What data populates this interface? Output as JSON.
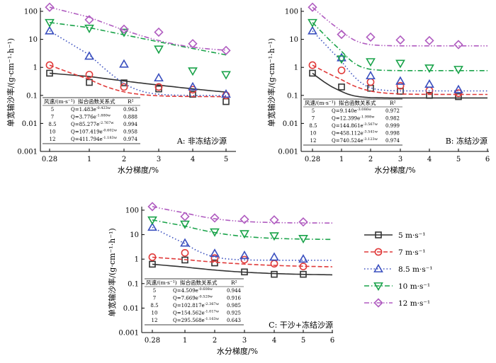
{
  "chart_data": [
    {
      "type": "scatter",
      "panel_label": "A: 非冻结沙源",
      "xlabel": "水分梯度/%",
      "ylabel": "单宽输沙率/(g·cm⁻¹·h⁻¹)",
      "yscale": "log",
      "ylim": [
        0.001,
        200
      ],
      "x_ticks": [
        "0.28",
        "1",
        "2",
        "3",
        "4",
        "5"
      ],
      "x": [
        0.28,
        1,
        2,
        3,
        4,
        5
      ],
      "series": [
        {
          "name": "5 m·s⁻¹",
          "color": "#333333",
          "marker": "square",
          "values": [
            0.62,
            0.29,
            0.28,
            0.17,
            0.11,
            0.06
          ],
          "fit": {
            "a": 1.483,
            "b": 0.423,
            "exp": "-0.423w",
            "r2": "0.963"
          }
        },
        {
          "name": "7 m·s⁻¹",
          "color": "#e03a3a",
          "marker": "circle",
          "values": [
            1.2,
            0.55,
            0.2,
            0.2,
            0.16,
            0.1
          ],
          "fit": {
            "a": 3.776,
            "b": 1.88,
            "exp": "-1.880w",
            "r2": "0.888"
          }
        },
        {
          "name": "8.5 m·s⁻¹",
          "color": "#3a4fbf",
          "marker": "triangle-up",
          "values": [
            20,
            2.5,
            1.3,
            0.42,
            0.2,
            0.11
          ],
          "fit": {
            "a": 85.277,
            "b": 2.767,
            "exp": "-2.767w",
            "r2": "0.994"
          }
        },
        {
          "name": "10 m·s⁻¹",
          "color": "#1aa34a",
          "marker": "triangle-down",
          "values": [
            40,
            25,
            18,
            4.5,
            0.75,
            0.55
          ],
          "fit": {
            "a": 107.419,
            "b": 0.602,
            "exp": "-0.602w",
            "r2": "0.958"
          }
        },
        {
          "name": "12 m·s⁻¹",
          "color": "#b05cc0",
          "marker": "diamond",
          "values": [
            140,
            50,
            23,
            18,
            7,
            4
          ],
          "fit": {
            "a": 411.794,
            "b": 1.183,
            "exp": "-1.183w",
            "r2": "0.974"
          }
        }
      ],
      "fit_table": {
        "headers": [
          "风速/(m·s⁻¹)",
          "拟合函数关系式",
          "R²"
        ],
        "rows": [
          {
            "speed": "5",
            "formula": "Q=1.483e",
            "exp": "-0.423w",
            "r2": "0.963"
          },
          {
            "speed": "7",
            "formula": "Q=3.776e",
            "exp": "-1.880w",
            "r2": "0.888"
          },
          {
            "speed": "8.5",
            "formula": "Q=85.277e",
            "exp": "-2.767w",
            "r2": "0.994"
          },
          {
            "speed": "10",
            "formula": "Q=107.419e",
            "exp": "-0.602w",
            "r2": "0.958"
          },
          {
            "speed": "12",
            "formula": "Q=411.794e",
            "exp": "-1.183w",
            "r2": "0.974"
          }
        ]
      }
    },
    {
      "type": "scatter",
      "panel_label": "B: 冻结沙源",
      "xlabel": "水分梯度/%",
      "ylabel": "单宽输沙率/(g·cm⁻¹·h⁻¹)",
      "yscale": "log",
      "ylim": [
        0.001,
        200
      ],
      "x_ticks": [
        "0.28",
        "1",
        "2",
        "3",
        "4",
        "5",
        "6"
      ],
      "x": [
        0.28,
        1,
        2,
        3,
        4,
        5
      ],
      "series": [
        {
          "name": "5 m·s⁻¹",
          "color": "#333333",
          "marker": "square",
          "values": [
            0.62,
            0.2,
            0.18,
            0.14,
            0.1,
            0.09
          ],
          "fit": {
            "a": 9.14,
            "b": 3.086,
            "exp": "-3.086w",
            "r2": "0.972"
          }
        },
        {
          "name": "7 m·s⁻¹",
          "color": "#e03a3a",
          "marker": "circle",
          "values": [
            1.2,
            0.78,
            0.3,
            0.22,
            0.15,
            0.12
          ],
          "fit": {
            "a": 12.399,
            "b": 1.998,
            "exp": "-1.998w",
            "r2": "0.982"
          }
        },
        {
          "name": "8.5 m·s⁻¹",
          "color": "#3a4fbf",
          "marker": "triangle-up",
          "values": [
            20,
            2.2,
            0.5,
            0.32,
            0.25,
            0.16
          ],
          "fit": {
            "a": 144.861,
            "b": 3.567,
            "exp": "-3.567w",
            "r2": "0.999"
          }
        },
        {
          "name": "10 m·s⁻¹",
          "color": "#1aa34a",
          "marker": "triangle-down",
          "values": [
            40,
            2.0,
            1.6,
            1.4,
            0.95,
            0.85
          ],
          "fit": {
            "a": 458.112,
            "b": 3.541,
            "exp": "-3.541w",
            "r2": "0.998"
          }
        },
        {
          "name": "12 m·s⁻¹",
          "color": "#b05cc0",
          "marker": "diamond",
          "values": [
            140,
            15,
            12,
            9.5,
            9,
            6.5
          ],
          "fit": {
            "a": 740.524,
            "b": 3.123,
            "exp": "-3.123w",
            "r2": "0.974"
          }
        }
      ],
      "fit_table": {
        "headers": [
          "风速/(m·s⁻¹)",
          "拟合函数关系式",
          "R²"
        ],
        "rows": [
          {
            "speed": "5",
            "formula": "Q=9.140e",
            "exp": "-3.086w",
            "r2": "0.972"
          },
          {
            "speed": "7",
            "formula": "Q=12.399e",
            "exp": "-1.998w",
            "r2": "0.982"
          },
          {
            "speed": "8.5",
            "formula": "Q=144.861e",
            "exp": "-3.567w",
            "r2": "0.999"
          },
          {
            "speed": "10",
            "formula": "Q=458.112e",
            "exp": "-3.541w",
            "r2": "0.998"
          },
          {
            "speed": "12",
            "formula": "Q=740.524e",
            "exp": "-3.123w",
            "r2": "0.974"
          }
        ]
      }
    },
    {
      "type": "scatter",
      "panel_label": "C: 干沙+冻结沙源",
      "xlabel": "水分梯度/%",
      "ylabel": "单宽输沙率/(g·cm⁻¹·h⁻¹)",
      "yscale": "log",
      "ylim": [
        0.001,
        200
      ],
      "x_ticks": [
        "0.28",
        "1",
        "2",
        "3",
        "4",
        "5",
        "6"
      ],
      "x": [
        0.28,
        1,
        2,
        3,
        4,
        5
      ],
      "series": [
        {
          "name": "5 m·s⁻¹",
          "color": "#333333",
          "marker": "square",
          "values": [
            0.62,
            0.92,
            0.7,
            0.3,
            0.24,
            0.24
          ],
          "fit": {
            "a": 4.509,
            "b": 0.608,
            "exp": "-0.608w",
            "r2": "0.944"
          }
        },
        {
          "name": "7 m·s⁻¹",
          "color": "#e03a3a",
          "marker": "circle",
          "values": [
            1.2,
            1.8,
            1.1,
            0.95,
            0.65,
            0.5
          ],
          "fit": {
            "a": 7.669,
            "b": 0.529,
            "exp": "-0.529w",
            "r2": "0.916"
          }
        },
        {
          "name": "8.5 m·s⁻¹",
          "color": "#3a4fbf",
          "marker": "triangle-up",
          "values": [
            20,
            4.5,
            1.7,
            1.4,
            1.2,
            1.0
          ],
          "fit": {
            "a": 102.817,
            "b": 2.367,
            "exp": "-2.367w",
            "r2": "0.985"
          }
        },
        {
          "name": "10 m·s⁻¹",
          "color": "#1aa34a",
          "marker": "triangle-down",
          "values": [
            40,
            27,
            13,
            11,
            9,
            7
          ],
          "fit": {
            "a": 154.562,
            "b": 1.017,
            "exp": "-1.017w",
            "r2": "0.925"
          }
        },
        {
          "name": "12 m·s⁻¹",
          "color": "#b05cc0",
          "marker": "diamond",
          "values": [
            140,
            55,
            48,
            42,
            40,
            33
          ],
          "fit": {
            "a": 295.568,
            "b": 1.163,
            "exp": "-1.163w",
            "r2": "0.643"
          }
        }
      ],
      "fit_table": {
        "headers": [
          "风速/(m·s⁻¹)",
          "拟合函数关系式",
          "R²"
        ],
        "rows": [
          {
            "speed": "5",
            "formula": "Q=4.509e",
            "exp": "-0.608w",
            "r2": "0.944"
          },
          {
            "speed": "7",
            "formula": "Q=7.669e",
            "exp": "-0.529w",
            "r2": "0.916"
          },
          {
            "speed": "8.5",
            "formula": "Q=102.817e",
            "exp": "-2.367w",
            "r2": "0.985"
          },
          {
            "speed": "10",
            "formula": "Q=154.562e",
            "exp": "-1.017w",
            "r2": "0.925"
          },
          {
            "speed": "12",
            "formula": "Q=295.568e",
            "exp": "-1.163w",
            "r2": "0.643"
          }
        ]
      }
    }
  ],
  "legend": {
    "placement": "right-of-panel-C",
    "items": [
      {
        "label": "5 m·s⁻¹",
        "color": "#333333",
        "marker": "square",
        "dash": "solid"
      },
      {
        "label": "7 m·s⁻¹",
        "color": "#e03a3a",
        "marker": "circle",
        "dash": "dashed"
      },
      {
        "label": "8.5 m·s⁻¹",
        "color": "#3a4fbf",
        "marker": "triangle-up",
        "dash": "dotted"
      },
      {
        "label": "10 m·s⁻¹",
        "color": "#1aa34a",
        "marker": "triangle-down",
        "dash": "dashdot"
      },
      {
        "label": "12 m·s⁻¹",
        "color": "#b05cc0",
        "marker": "diamond",
        "dash": "dashdotdot"
      }
    ]
  }
}
